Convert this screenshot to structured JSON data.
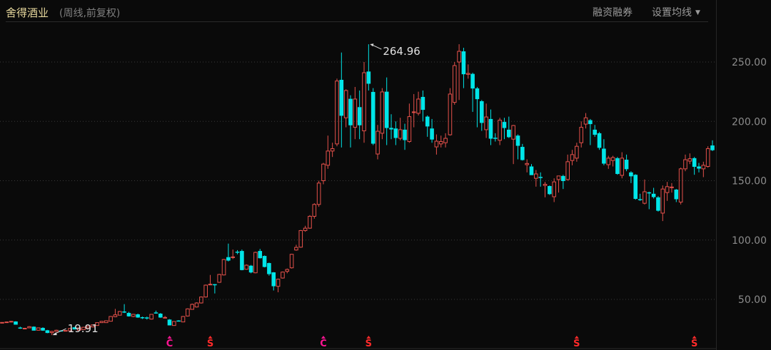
{
  "header": {
    "title": "舍得酒业",
    "subtitle": "(周线,前复权)",
    "margin_button": "融资融券",
    "ma_button": "设置均线",
    "ma_caret_icon": "caret-down-icon"
  },
  "colors": {
    "background": "#0a0a0a",
    "up": "#e5514b",
    "down": "#00e5e8",
    "grid": "#3a3a3a",
    "marker_c": "#ff1493",
    "marker_s": "#ff2a2a"
  },
  "chart_data": {
    "type": "candlestick",
    "title": "",
    "xlabel": "",
    "ylabel": "",
    "ylim": [
      18,
      270
    ],
    "yticks": [
      50,
      100,
      150,
      200,
      250
    ],
    "ytick_labels": [
      "50.00",
      "100.00",
      "150.00",
      "200.00",
      "250.00"
    ],
    "grid": "horizontal dotted",
    "y_axis_position": "right",
    "candle_format": [
      "open",
      "high",
      "low",
      "close"
    ],
    "candles": [
      [
        30.2,
        30.8,
        29.8,
        30.6
      ],
      [
        30.6,
        31.2,
        30.3,
        31
      ],
      [
        31,
        31.8,
        30.8,
        31.5
      ],
      [
        31.4,
        31.6,
        28.8,
        29
      ],
      [
        26.3,
        27,
        25.2,
        26
      ],
      [
        25.3,
        26,
        25,
        25.7
      ],
      [
        26,
        27.5,
        25.8,
        27
      ],
      [
        27,
        27.3,
        23.8,
        24
      ],
      [
        24,
        26.3,
        23.8,
        26
      ],
      [
        26,
        26.5,
        23.5,
        24
      ],
      [
        24,
        24.3,
        21.5,
        22
      ],
      [
        22,
        23.5,
        19.91,
        23
      ],
      [
        23,
        24.5,
        22.6,
        24
      ],
      [
        23.8,
        24,
        23,
        23.5
      ],
      [
        23.5,
        24,
        23.3,
        23.8
      ],
      [
        23.6,
        25.8,
        23.4,
        25.5
      ],
      [
        26.5,
        26.8,
        24.7,
        25
      ],
      [
        24,
        26.3,
        23.8,
        26
      ],
      [
        24.5,
        26.8,
        24.3,
        26.5
      ],
      [
        26,
        27.8,
        25.8,
        27.5
      ],
      [
        26.8,
        28.8,
        26.5,
        28.5
      ],
      [
        28,
        30.6,
        27.8,
        30.4
      ],
      [
        30.4,
        31.8,
        30.2,
        31.5
      ],
      [
        30.4,
        32.3,
        30.2,
        32
      ],
      [
        31.6,
        36,
        31.4,
        35.6
      ],
      [
        35.4,
        42,
        35,
        37
      ],
      [
        36.7,
        40.2,
        36.5,
        39.8
      ],
      [
        39.8,
        46,
        38.5,
        39.5
      ],
      [
        38.6,
        39.5,
        35.5,
        36
      ],
      [
        35.6,
        37.8,
        35,
        37.4
      ],
      [
        37.4,
        38,
        34.5,
        35
      ],
      [
        35,
        35.5,
        33.5,
        34.6
      ],
      [
        34.8,
        35.5,
        33,
        34.4
      ],
      [
        33.4,
        37.6,
        33,
        37.4
      ],
      [
        39,
        40.5,
        38,
        38.8
      ],
      [
        38,
        38.5,
        34.5,
        35
      ],
      [
        34.6,
        36,
        34.2,
        34.8
      ],
      [
        33,
        33.4,
        28.2,
        28.4
      ],
      [
        28,
        31.6,
        27.8,
        31.4
      ],
      [
        32.2,
        32.5,
        31.8,
        32
      ],
      [
        31,
        36,
        30.8,
        35.6
      ],
      [
        36,
        42.5,
        35.5,
        42
      ],
      [
        41.6,
        46.5,
        41.3,
        45.8
      ],
      [
        43.6,
        47.5,
        43.2,
        47
      ],
      [
        47,
        52.5,
        46.5,
        52
      ],
      [
        52,
        62.5,
        51.5,
        62
      ],
      [
        62.4,
        70.6,
        62,
        62.8
      ],
      [
        62.8,
        63,
        55,
        62.4
      ],
      [
        64.4,
        71.5,
        64,
        71
      ],
      [
        70.6,
        84,
        70.2,
        83.6
      ],
      [
        85.6,
        97,
        82,
        83
      ],
      [
        85.2,
        92,
        84,
        85.8
      ],
      [
        90.2,
        91.5,
        88,
        90
      ],
      [
        90.8,
        92,
        74.5,
        75
      ],
      [
        75.4,
        79.5,
        75,
        78.8
      ],
      [
        78.4,
        79,
        72,
        73
      ],
      [
        72.4,
        90.2,
        72,
        89.6
      ],
      [
        90.8,
        92.5,
        84.5,
        85
      ],
      [
        86.6,
        87,
        77,
        77.6
      ],
      [
        80.6,
        81,
        70,
        71.6
      ],
      [
        72.8,
        73,
        57.5,
        61.4
      ],
      [
        61,
        67.5,
        56,
        67
      ],
      [
        68,
        73.5,
        67.5,
        73
      ],
      [
        73.6,
        76,
        72,
        75.2
      ],
      [
        76.6,
        88.4,
        76,
        88
      ],
      [
        91.6,
        96,
        91,
        93.8
      ],
      [
        94,
        108.5,
        93.5,
        108
      ],
      [
        108,
        112,
        107,
        110
      ],
      [
        110,
        121,
        109.5,
        120
      ],
      [
        120,
        131,
        118,
        130
      ],
      [
        130,
        150,
        128,
        148
      ],
      [
        150,
        165,
        147,
        164
      ],
      [
        163,
        188,
        160,
        175
      ],
      [
        175,
        182,
        170,
        177
      ],
      [
        181,
        236,
        179,
        234
      ],
      [
        235,
        258,
        178,
        205
      ],
      [
        203,
        227,
        195,
        226
      ],
      [
        219,
        222,
        178,
        197
      ],
      [
        195,
        229,
        185,
        218.8
      ],
      [
        212,
        226,
        185,
        197
      ],
      [
        192,
        250,
        182,
        241
      ],
      [
        242,
        264.96,
        226,
        232
      ],
      [
        224.8,
        228,
        180,
        181.5
      ],
      [
        172.5,
        197,
        168,
        191.7
      ],
      [
        190,
        228,
        185,
        224.8
      ],
      [
        225,
        237,
        180,
        194.7
      ],
      [
        194.5,
        206,
        185,
        193.5
      ],
      [
        194,
        200,
        180,
        186.3
      ],
      [
        185.7,
        203,
        184,
        193
      ],
      [
        193,
        198,
        176,
        184.5
      ],
      [
        183,
        215,
        182,
        204
      ],
      [
        207.5,
        223,
        195,
        208
      ],
      [
        206.8,
        225,
        205,
        218.8
      ],
      [
        220.6,
        226,
        200,
        210
      ],
      [
        204,
        205,
        187,
        196
      ],
      [
        194,
        202,
        182,
        185
      ],
      [
        178.5,
        189,
        172,
        183.3
      ],
      [
        181,
        188,
        178,
        183
      ],
      [
        182,
        190,
        178,
        185.7
      ],
      [
        188.7,
        228,
        188,
        223
      ],
      [
        216,
        250,
        214,
        247
      ],
      [
        250,
        265,
        218,
        259
      ],
      [
        259,
        262,
        228,
        240
      ],
      [
        239.6,
        248,
        236,
        240.4
      ],
      [
        240,
        241,
        208,
        228
      ],
      [
        227.8,
        229,
        195,
        219
      ],
      [
        217,
        218,
        192,
        199
      ],
      [
        193,
        215,
        186,
        203.7
      ],
      [
        202,
        210,
        180,
        185.7
      ],
      [
        186.2,
        190,
        183,
        185.8
      ],
      [
        184,
        203,
        180,
        201
      ],
      [
        199.5,
        203,
        185,
        194.7
      ],
      [
        193,
        204,
        186,
        187
      ],
      [
        185,
        197,
        164,
        196.5
      ],
      [
        188,
        189,
        168,
        179.7
      ],
      [
        178.5,
        181,
        167,
        167.7
      ],
      [
        163.5,
        168,
        157,
        164.5
      ],
      [
        162,
        164,
        155,
        155
      ],
      [
        152,
        159,
        145,
        155.7
      ],
      [
        153.2,
        157,
        145,
        152.8
      ],
      [
        146,
        149,
        136,
        147
      ],
      [
        145.5,
        146,
        138,
        139
      ],
      [
        136.5,
        152,
        132,
        149
      ],
      [
        151,
        154,
        140,
        154
      ],
      [
        154,
        155,
        143,
        150
      ],
      [
        151,
        172,
        150,
        166
      ],
      [
        167,
        176,
        163,
        172
      ],
      [
        169,
        182,
        166,
        179
      ],
      [
        182,
        200,
        178,
        195
      ],
      [
        197.7,
        207,
        194,
        203
      ],
      [
        201,
        202,
        180,
        198
      ],
      [
        193,
        197,
        187,
        189
      ],
      [
        190,
        191,
        176,
        178
      ],
      [
        177,
        185,
        163,
        164.7
      ],
      [
        163.5,
        171,
        160,
        169
      ],
      [
        167,
        171,
        162,
        169.5
      ],
      [
        169,
        170,
        155,
        156
      ],
      [
        154.5,
        174,
        152,
        169
      ],
      [
        167.7,
        172,
        158,
        160
      ],
      [
        157,
        158,
        148,
        154
      ],
      [
        155,
        155.5,
        134,
        135
      ],
      [
        134.5,
        139,
        133,
        134.3
      ],
      [
        131,
        151,
        130,
        140.7
      ],
      [
        140.2,
        140.8,
        126,
        140
      ],
      [
        139,
        144,
        135,
        136.5
      ],
      [
        136,
        137,
        124,
        125
      ],
      [
        122.7,
        146,
        116,
        143
      ],
      [
        140,
        149,
        133,
        145
      ],
      [
        144.3,
        148,
        140,
        144.7
      ],
      [
        142.5,
        143,
        132,
        134.7
      ],
      [
        132,
        161,
        130,
        160
      ],
      [
        160,
        172,
        158,
        167.7
      ],
      [
        166.5,
        173,
        164,
        168.5
      ],
      [
        169,
        170,
        155,
        162
      ],
      [
        162,
        165,
        157,
        160.5
      ],
      [
        160,
        166,
        153,
        163
      ],
      [
        162,
        179,
        161,
        177
      ],
      [
        179.7,
        184,
        175,
        176
      ]
    ],
    "annotations": [
      {
        "label": "264.96",
        "candle_index": 81,
        "type": "high"
      },
      {
        "label": "19.91",
        "candle_index": 11,
        "type": "low"
      }
    ],
    "markers": [
      {
        "label": "C",
        "candle_index": 37,
        "kind": "c"
      },
      {
        "label": "S",
        "candle_index": 46,
        "kind": "s"
      },
      {
        "label": "C",
        "candle_index": 71,
        "kind": "c"
      },
      {
        "label": "S",
        "candle_index": 81,
        "kind": "s"
      },
      {
        "label": "S",
        "candle_index": 127,
        "kind": "s"
      },
      {
        "label": "S",
        "candle_index": 153,
        "kind": "s"
      }
    ]
  }
}
